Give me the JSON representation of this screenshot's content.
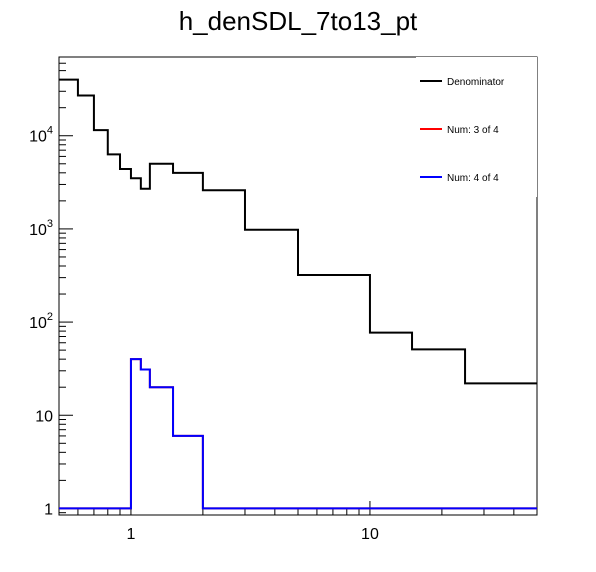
{
  "chart_data": {
    "type": "line",
    "title": "h_denSDL_7to13_pt",
    "xlabel": "",
    "ylabel": "",
    "xscale": "log",
    "yscale": "log",
    "xlim": [
      0.5,
      50
    ],
    "ylim": [
      0.85,
      70000
    ],
    "grid": false,
    "legend_placement": "top-right",
    "x_ticks": [
      {
        "value": 1,
        "label": "1"
      },
      {
        "value": 10,
        "label": "10"
      }
    ],
    "y_ticks": [
      {
        "value": 1,
        "label": "1"
      },
      {
        "value": 10,
        "label": "10"
      },
      {
        "value": 100,
        "label": "10",
        "exp": "2"
      },
      {
        "value": 1000,
        "label": "10",
        "exp": "3"
      },
      {
        "value": 10000,
        "label": "10",
        "exp": "4"
      }
    ],
    "bin_edges": [
      0.5,
      0.6,
      0.7,
      0.8,
      0.9,
      1.0,
      1.1,
      1.2,
      1.5,
      2.0,
      3.0,
      5.0,
      10.0,
      15.0,
      25.0,
      50.0
    ],
    "series": [
      {
        "name": "Denominator",
        "color": "#000000",
        "values": [
          40000,
          27000,
          11500,
          6300,
          4400,
          3500,
          2700,
          5000,
          4000,
          2600,
          980,
          320,
          77,
          51,
          22
        ]
      },
      {
        "name": "Num: 3 of 4",
        "color": "#ff0000",
        "values": [
          1,
          1,
          1,
          1,
          1,
          40,
          31,
          20,
          6,
          1,
          1,
          1,
          1,
          1,
          1
        ]
      },
      {
        "name": "Num: 4 of 4",
        "color": "#0000ff",
        "values": [
          1,
          1,
          1,
          1,
          1,
          40,
          31,
          20,
          6,
          1,
          1,
          1,
          1,
          1,
          1
        ]
      }
    ]
  }
}
